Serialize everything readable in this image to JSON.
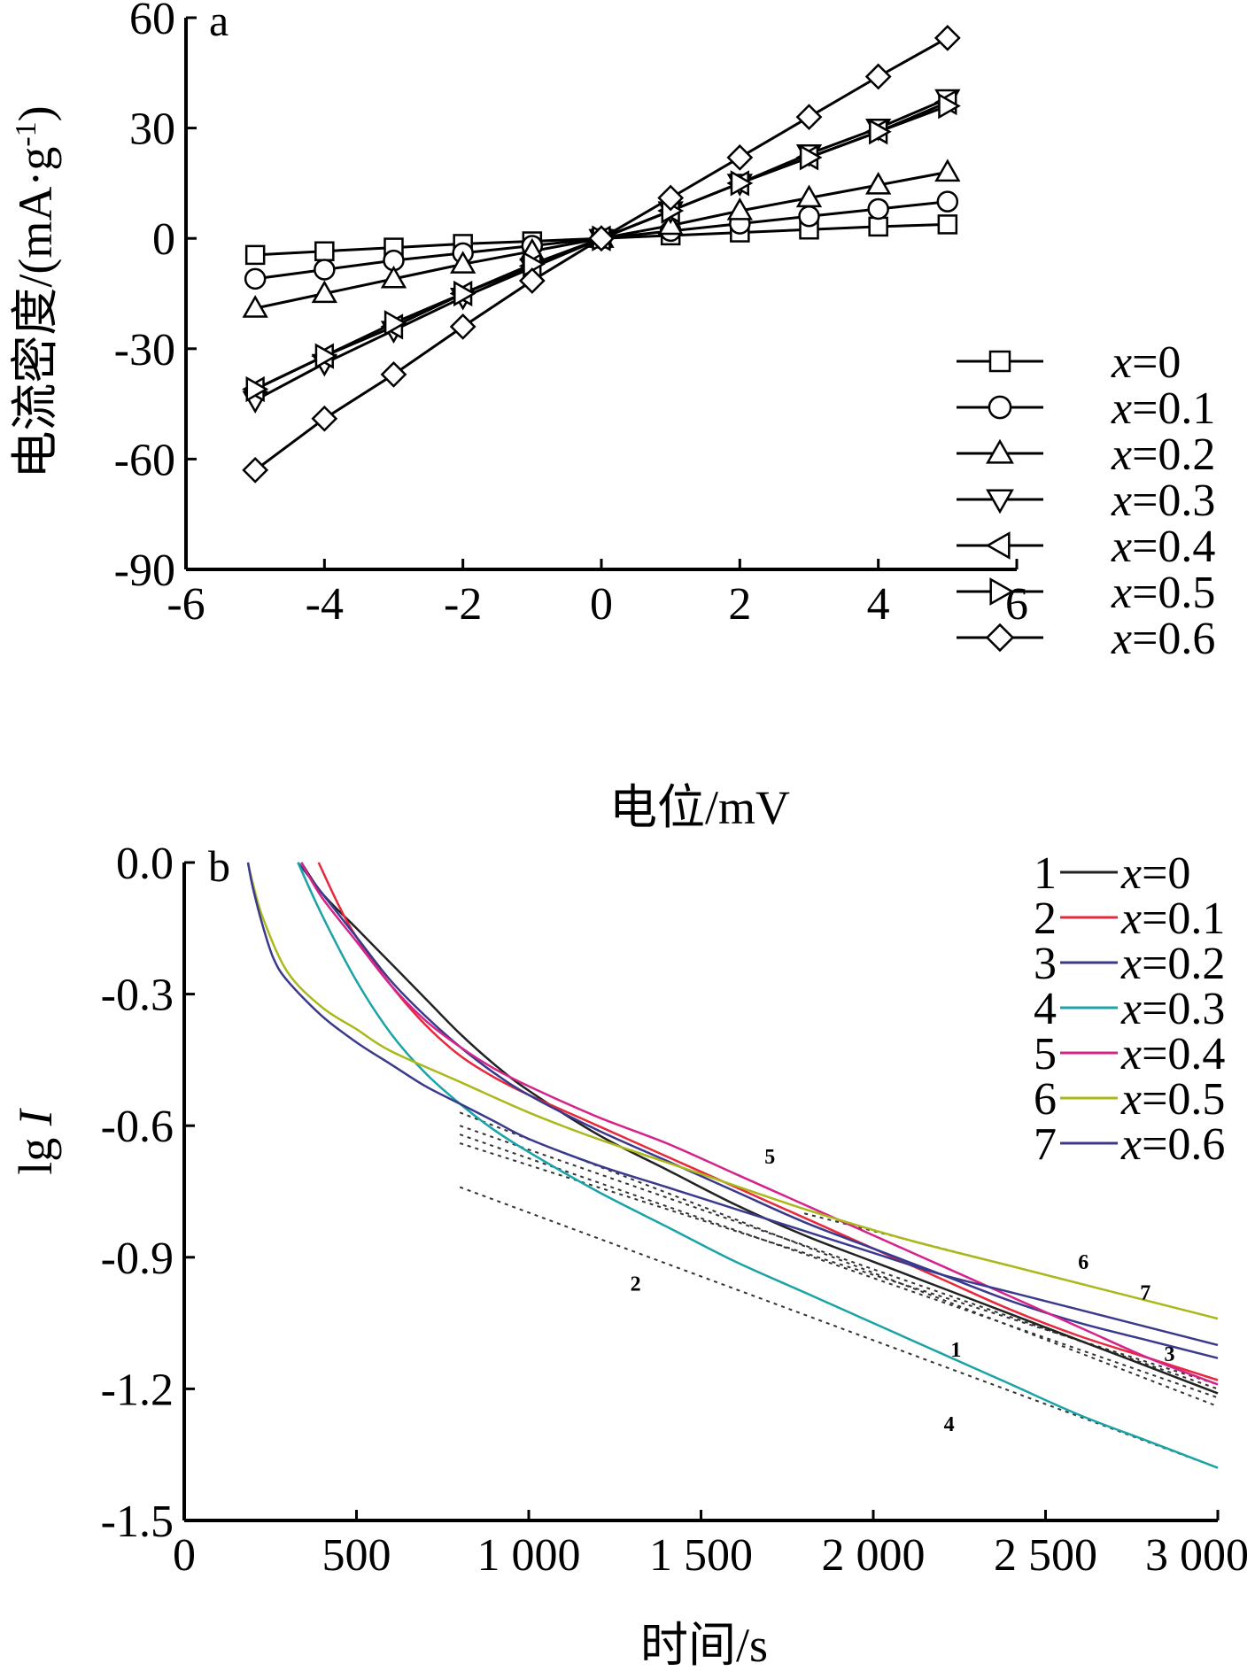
{
  "chart_data": [
    {
      "type": "line",
      "panel_label": "a",
      "xlabel": "电位/mV",
      "ylabel": "电流密度/(mA·g-1)",
      "ylabel_parts": {
        "main": "电流密度/(mA·g",
        "sup": "-1",
        "end": ")"
      },
      "xlim": [
        -6,
        6
      ],
      "ylim": [
        -90,
        60
      ],
      "xticks": [
        -6,
        -4,
        -2,
        0,
        2,
        4,
        6
      ],
      "yticks": [
        -90,
        -60,
        -30,
        0,
        30,
        60
      ],
      "grid": false,
      "legend_position": "right",
      "x": [
        -5,
        -4,
        -3,
        -2,
        -1,
        0,
        1,
        2,
        3,
        4,
        5
      ],
      "series": [
        {
          "name": "x=0",
          "var": "x",
          "label": "=0",
          "marker": "square",
          "values": [
            -4.5,
            -3.5,
            -2.5,
            -1.5,
            -0.8,
            0,
            0.8,
            1.6,
            2.4,
            3.2,
            3.8
          ]
        },
        {
          "name": "x=0.1",
          "var": "x",
          "label": "=0.1",
          "marker": "circle",
          "values": [
            -11,
            -8.5,
            -6,
            -4,
            -2,
            0,
            2,
            4,
            6,
            8,
            10
          ]
        },
        {
          "name": "x=0.2",
          "var": "x",
          "label": "=0.2",
          "marker": "triangle-up",
          "values": [
            -19,
            -15,
            -11,
            -7,
            -3.5,
            0,
            3.5,
            7.5,
            11,
            14.5,
            18
          ]
        },
        {
          "name": "x=0.3",
          "var": "x",
          "label": "=0.3",
          "marker": "triangle-down",
          "values": [
            -44,
            -34,
            -25,
            -16,
            -8,
            0,
            7.5,
            15,
            23,
            30,
            38
          ]
        },
        {
          "name": "x=0.4",
          "var": "x",
          "label": "=0.4",
          "marker": "triangle-left",
          "values": [
            -41,
            -32,
            -24,
            -15,
            -7.5,
            0,
            7.5,
            15,
            22,
            29,
            37
          ]
        },
        {
          "name": "x=0.5",
          "var": "x",
          "label": "=0.5",
          "marker": "triangle-right",
          "values": [
            -41,
            -32,
            -23,
            -15,
            -7,
            0,
            7.5,
            15,
            22,
            29,
            36
          ]
        },
        {
          "name": "x=0.6",
          "var": "x",
          "label": "=0.6",
          "marker": "diamond",
          "values": [
            -63,
            -49,
            -37,
            -24,
            -11.5,
            0,
            11,
            22,
            33,
            44,
            54.5
          ]
        }
      ]
    },
    {
      "type": "line",
      "panel_label": "b",
      "xlabel": "时间/s",
      "ylabel": "lg I",
      "ylabel_parts": {
        "main": "lg ",
        "italic": "I"
      },
      "xlim": [
        0,
        3000
      ],
      "ylim": [
        -1.5,
        0.0
      ],
      "xticks": [
        0,
        500,
        1000,
        1500,
        2000,
        2500,
        3000
      ],
      "xtick_labels": [
        "0",
        "500",
        "1 000",
        "1 500",
        "2 000",
        "2 500",
        "3 000"
      ],
      "yticks": [
        0.0,
        -0.3,
        -0.6,
        -0.9,
        -1.2,
        -1.5
      ],
      "ytick_labels": [
        "0.0",
        "-0.3",
        "-0.6",
        "-0.9",
        "-1.2",
        "-1.5"
      ],
      "grid": false,
      "legend_position": "top-right",
      "series": [
        {
          "number": "1",
          "name": "x=0",
          "var": "x",
          "label": "=0",
          "color": "#222222",
          "x": [
            340,
            400,
            500,
            600,
            700,
            800,
            900,
            1000,
            1200,
            1400,
            1600,
            1800,
            2000,
            2200,
            2400,
            2600,
            2800,
            3000
          ],
          "values": [
            0.0,
            -0.07,
            -0.15,
            -0.23,
            -0.31,
            -0.39,
            -0.46,
            -0.52,
            -0.62,
            -0.7,
            -0.78,
            -0.85,
            -0.91,
            -0.97,
            -1.03,
            -1.09,
            -1.15,
            -1.21
          ]
        },
        {
          "number": "2",
          "name": "x=0.1",
          "var": "x",
          "label": "=0.1",
          "color": "#e8283c",
          "x": [
            390,
            450,
            500,
            600,
            700,
            800,
            900,
            1000,
            1200,
            1400,
            1600,
            1800,
            2000,
            2200,
            2400,
            2600,
            2800,
            3000
          ],
          "values": [
            0.0,
            -0.1,
            -0.17,
            -0.28,
            -0.37,
            -0.44,
            -0.49,
            -0.53,
            -0.6,
            -0.67,
            -0.74,
            -0.81,
            -0.88,
            -0.95,
            -1.02,
            -1.08,
            -1.13,
            -1.18
          ]
        },
        {
          "number": "3",
          "name": "x=0.2",
          "var": "x",
          "label": "=0.2",
          "color": "#3a3a8c",
          "x": [
            330,
            400,
            500,
            600,
            700,
            800,
            900,
            1000,
            1200,
            1400,
            1600,
            1800,
            2000,
            2200,
            2400,
            2600,
            2800,
            3000
          ],
          "values": [
            0.0,
            -0.07,
            -0.17,
            -0.27,
            -0.35,
            -0.42,
            -0.48,
            -0.53,
            -0.61,
            -0.68,
            -0.75,
            -0.82,
            -0.88,
            -0.94,
            -1.0,
            -1.05,
            -1.09,
            -1.13
          ]
        },
        {
          "number": "4",
          "name": "x=0.3",
          "var": "x",
          "label": "=0.3",
          "color": "#1aa3a8",
          "x": [
            330,
            400,
            500,
            600,
            700,
            800,
            900,
            1000,
            1200,
            1400,
            1600,
            1800,
            2000,
            2200,
            2400,
            2600,
            2800,
            3000
          ],
          "values": [
            0.0,
            -0.12,
            -0.27,
            -0.39,
            -0.48,
            -0.55,
            -0.61,
            -0.66,
            -0.75,
            -0.83,
            -0.91,
            -0.98,
            -1.05,
            -1.12,
            -1.19,
            -1.26,
            -1.32,
            -1.38
          ]
        },
        {
          "number": "5",
          "name": "x=0.4",
          "var": "x",
          "label": "=0.4",
          "color": "#d4248c",
          "x": [
            340,
            400,
            500,
            600,
            700,
            800,
            900,
            1000,
            1200,
            1400,
            1600,
            1800,
            2000,
            2200,
            2400,
            2600,
            2800,
            3000
          ],
          "values": [
            0.0,
            -0.08,
            -0.18,
            -0.28,
            -0.36,
            -0.42,
            -0.47,
            -0.51,
            -0.58,
            -0.64,
            -0.71,
            -0.78,
            -0.85,
            -0.92,
            -0.99,
            -1.06,
            -1.13,
            -1.19
          ]
        },
        {
          "number": "6",
          "name": "x=0.5",
          "var": "x",
          "label": "=0.5",
          "color": "#aab81a",
          "x": [
            185,
            200,
            230,
            300,
            400,
            500,
            600,
            800,
            1000,
            1200,
            1500,
            1800,
            2100,
            2400,
            2700,
            3000
          ],
          "values": [
            0.0,
            -0.05,
            -0.13,
            -0.25,
            -0.33,
            -0.38,
            -0.43,
            -0.5,
            -0.57,
            -0.63,
            -0.71,
            -0.79,
            -0.86,
            -0.92,
            -0.98,
            -1.04
          ]
        },
        {
          "number": "7",
          "name": "x=0.6",
          "var": "x",
          "label": "=0.6",
          "color": "#3a3a8c",
          "x": [
            185,
            200,
            230,
            260,
            300,
            400,
            500,
            600,
            700,
            800,
            900,
            1000,
            1200,
            1400,
            1600,
            1800,
            2000,
            2200,
            2400,
            2600,
            2800,
            3000
          ],
          "values": [
            0.0,
            -0.06,
            -0.15,
            -0.22,
            -0.27,
            -0.35,
            -0.41,
            -0.46,
            -0.51,
            -0.55,
            -0.59,
            -0.63,
            -0.69,
            -0.74,
            -0.79,
            -0.84,
            -0.89,
            -0.94,
            -0.98,
            -1.02,
            -1.06,
            -1.1
          ]
        }
      ],
      "fit_lines": [
        {
          "x": [
            800,
            3000
          ],
          "values": [
            -0.57,
            -1.24
          ]
        },
        {
          "x": [
            800,
            3000
          ],
          "values": [
            -0.6,
            -1.2
          ]
        },
        {
          "x": [
            800,
            3000
          ],
          "values": [
            -0.62,
            -1.22
          ]
        },
        {
          "x": [
            800,
            3000
          ],
          "values": [
            -0.64,
            -1.19
          ]
        },
        {
          "x": [
            800,
            3000
          ],
          "values": [
            -0.74,
            -1.38
          ]
        },
        {
          "x": [
            1800,
            3000
          ],
          "values": [
            -0.8,
            -1.04
          ]
        }
      ],
      "annotations": [
        {
          "text": "5",
          "x": 1700,
          "y": -0.67
        },
        {
          "text": "2",
          "x": 1310,
          "y": -0.96
        },
        {
          "text": "6",
          "x": 2610,
          "y": -0.91
        },
        {
          "text": "7",
          "x": 2790,
          "y": -0.98
        },
        {
          "text": "1",
          "x": 2240,
          "y": -1.11
        },
        {
          "text": "3",
          "x": 2860,
          "y": -1.12
        },
        {
          "text": "4",
          "x": 2220,
          "y": -1.28
        }
      ]
    }
  ]
}
